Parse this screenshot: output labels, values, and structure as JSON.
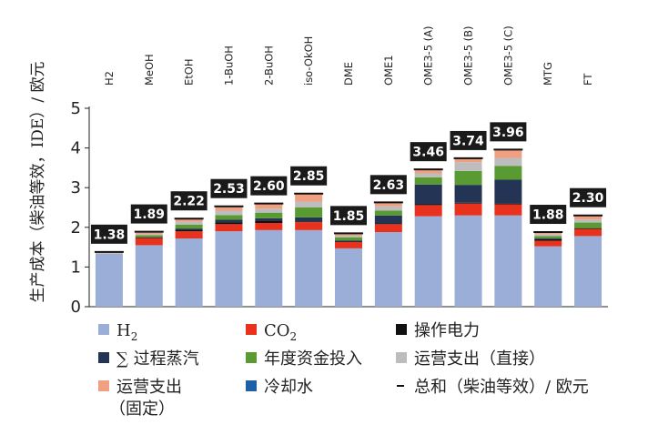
{
  "chart_data": {
    "type": "bar",
    "stacked": true,
    "ylabel": "生产成本（柴油等效，IDE）/ 欧元",
    "ylim": [
      0,
      5
    ],
    "yticks": [
      "0",
      "1",
      "2",
      "3",
      "4",
      "5"
    ],
    "categories": [
      "H2",
      "MeOH",
      "EtOH",
      "1-BuOH",
      "2-BuOH",
      "iso-OkOH",
      "DME",
      "OME1",
      "OME3-5 (A)",
      "OME3-5 (B)",
      "OME3-5 (C)",
      "MTG",
      "FT"
    ],
    "series": [
      {
        "name": "H2",
        "color": "#9aaed8",
        "values": [
          1.33,
          1.55,
          1.72,
          1.9,
          1.93,
          1.93,
          1.47,
          1.88,
          2.28,
          2.3,
          2.3,
          1.52,
          1.78
        ]
      },
      {
        "name": "CO2",
        "color": "#e8321e",
        "values": [
          0.0,
          0.18,
          0.18,
          0.18,
          0.18,
          0.2,
          0.16,
          0.2,
          0.28,
          0.3,
          0.28,
          0.14,
          0.18
        ]
      },
      {
        "name": "操作电力",
        "color": "#111111",
        "values": [
          0.0,
          0.02,
          0.04,
          0.05,
          0.06,
          0.02,
          0.02,
          0.02,
          0.02,
          0.02,
          0.02,
          0.04,
          0.02
        ]
      },
      {
        "name": "∑ 过程蒸汽",
        "color": "#243454",
        "values": [
          0.0,
          0.0,
          0.03,
          0.06,
          0.06,
          0.1,
          0.02,
          0.2,
          0.5,
          0.45,
          0.6,
          0.02,
          0.0
        ]
      },
      {
        "name": "年度资金投入",
        "color": "#5a9a32",
        "values": [
          0.0,
          0.05,
          0.1,
          0.12,
          0.14,
          0.25,
          0.08,
          0.12,
          0.18,
          0.35,
          0.35,
          0.06,
          0.14
        ]
      },
      {
        "name": "运营支出（直接）",
        "color": "#bdbdbd",
        "values": [
          0.02,
          0.03,
          0.07,
          0.11,
          0.1,
          0.15,
          0.04,
          0.11,
          0.1,
          0.22,
          0.2,
          0.05,
          0.08
        ]
      },
      {
        "name": "运营支出（固定）",
        "color": "#f0a080",
        "values": [
          0.03,
          0.06,
          0.08,
          0.11,
          0.13,
          0.2,
          0.06,
          0.1,
          0.1,
          0.1,
          0.21,
          0.05,
          0.1
        ]
      },
      {
        "name": "冷却水",
        "color": "#1f5fa8",
        "values": [
          0.0,
          0.0,
          0.0,
          0.0,
          0.0,
          0.0,
          0.0,
          0.0,
          0.0,
          0.0,
          0.0,
          0.0,
          0.0
        ]
      }
    ],
    "totals": [
      1.38,
      1.89,
      2.22,
      2.53,
      2.6,
      2.85,
      1.85,
      2.63,
      3.46,
      3.74,
      3.96,
      1.88,
      2.3
    ],
    "total_labels": [
      "1.38",
      "1.89",
      "2.22",
      "2.53",
      "2.60",
      "2.85",
      "1.85",
      "2.63",
      "3.46",
      "3.74",
      "3.96",
      "1.88",
      "2.30"
    ],
    "total_series_name": "总和（柴油等效）/ 欧元",
    "legend": {
      "placement": "bottom",
      "entries": [
        {
          "key": "h2",
          "label_main": "H",
          "label_sub": "2",
          "color": "#9aaed8",
          "marker": "square"
        },
        {
          "key": "co2",
          "label_main": "CO",
          "label_sub": "2",
          "color": "#e8321e",
          "marker": "square"
        },
        {
          "key": "power",
          "label": "操作电力",
          "color": "#111111",
          "marker": "square"
        },
        {
          "key": "steam",
          "label": "∑ 过程蒸汽",
          "color": "#243454",
          "marker": "square"
        },
        {
          "key": "capex",
          "label": "年度资金投入",
          "color": "#5a9a32",
          "marker": "square"
        },
        {
          "key": "opex-direct",
          "label": "运营支出（直接）",
          "color": "#bdbdbd",
          "marker": "square"
        },
        {
          "key": "opex-fixed",
          "label_lines": [
            "运营支出",
            "（固定）"
          ],
          "color": "#f0a080",
          "marker": "square"
        },
        {
          "key": "cooling",
          "label": "冷却水",
          "color": "#1f5fa8",
          "marker": "square"
        },
        {
          "key": "total",
          "label": "总和（柴油等效）/ 欧元",
          "color": "#111111",
          "marker": "dash"
        }
      ]
    }
  }
}
